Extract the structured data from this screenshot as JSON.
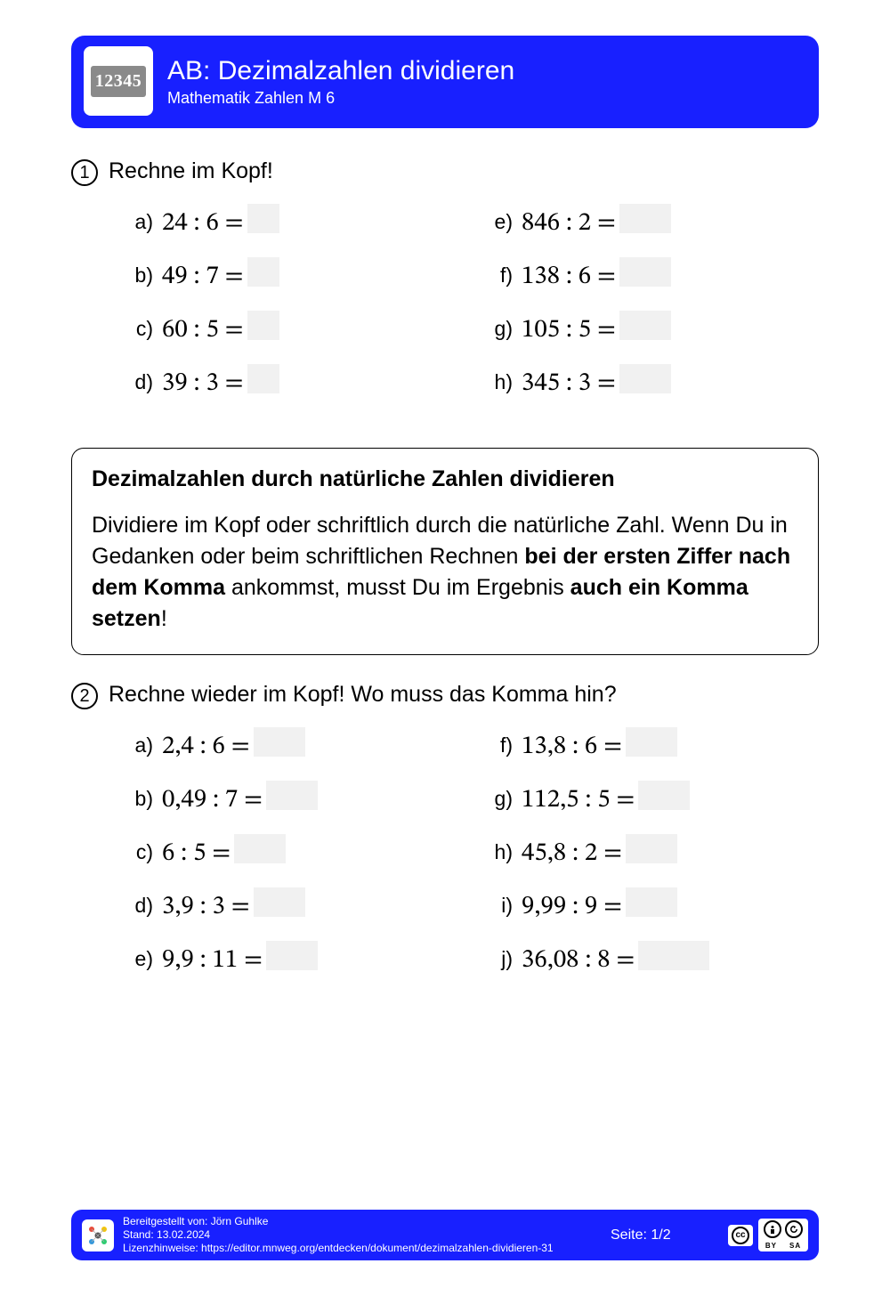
{
  "colors": {
    "brand": "#1820ff",
    "logo_bg": "#8a8a8a",
    "blank_bg": "#f1f1f1",
    "text": "#000000",
    "page_bg": "#ffffff"
  },
  "header": {
    "logo_text": "12345",
    "title": "AB: Dezimalzahlen dividieren",
    "subtitle": "Mathematik Zahlen M 6"
  },
  "ex1": {
    "num": "1",
    "title": "Rechne im Kopf!",
    "items": [
      {
        "label": "a)",
        "expr": "24 : 6 =",
        "blank": "b-sm"
      },
      {
        "label": "e)",
        "expr": "846 : 2 =",
        "blank": "b-md"
      },
      {
        "label": "b)",
        "expr": "49 : 7 =",
        "blank": "b-sm"
      },
      {
        "label": "f)",
        "expr": "138 : 6 =",
        "blank": "b-md"
      },
      {
        "label": "c)",
        "expr": "60 : 5 =",
        "blank": "b-sm"
      },
      {
        "label": "g)",
        "expr": "105 : 5 =",
        "blank": "b-md"
      },
      {
        "label": "d)",
        "expr": "39 : 3 =",
        "blank": "b-sm"
      },
      {
        "label": "h)",
        "expr": "345 : 3 =",
        "blank": "b-md"
      }
    ]
  },
  "info": {
    "title": "Dezimalzahlen durch natürliche Zahlen dividieren",
    "p1": "Dividiere im Kopf oder schriftlich durch die natürliche Zahl. Wenn Du in Gedanken oder beim schriftlichen Rechnen ",
    "b1": "bei der ersten Ziffer nach dem Komma",
    "p2": " ankommst, musst Du im Er­gebnis ",
    "b2": "auch ein Komma setzen",
    "p3": "!"
  },
  "ex2": {
    "num": "2",
    "title": "Rechne wieder im Kopf! Wo muss das Komma hin?",
    "items": [
      {
        "label": "a)",
        "expr": "2,4 : 6 =",
        "blank": "b-md"
      },
      {
        "label": "f)",
        "expr": "13,8 : 6 =",
        "blank": "b-md"
      },
      {
        "label": "b)",
        "expr": "0,49 : 7 =",
        "blank": "b-md"
      },
      {
        "label": "g)",
        "expr": "112,5 : 5 =",
        "blank": "b-md"
      },
      {
        "label": "c)",
        "expr": "6 : 5 =",
        "blank": "b-md"
      },
      {
        "label": "h)",
        "expr": "45,8 : 2 =",
        "blank": "b-md"
      },
      {
        "label": "d)",
        "expr": "3,9 : 3 =",
        "blank": "b-md"
      },
      {
        "label": "i)",
        "expr": "9,99 : 9 =",
        "blank": "b-md"
      },
      {
        "label": "e)",
        "expr": "9,9 : 11 =",
        "blank": "b-md"
      },
      {
        "label": "j)",
        "expr": "36,08 : 8 =",
        "blank": "b-lg"
      }
    ]
  },
  "footer": {
    "provided": "Bereitgestellt von: Jörn Guhlke",
    "date": "Stand: 13.02.2024",
    "license": "Lizenzhinweise: https://editor.mnweg.org/entdecken/dokument/dezimalzahlen-dividieren-31",
    "page": "Seite: 1/2",
    "cc": "cc",
    "by": "BY",
    "sa": "SA"
  }
}
